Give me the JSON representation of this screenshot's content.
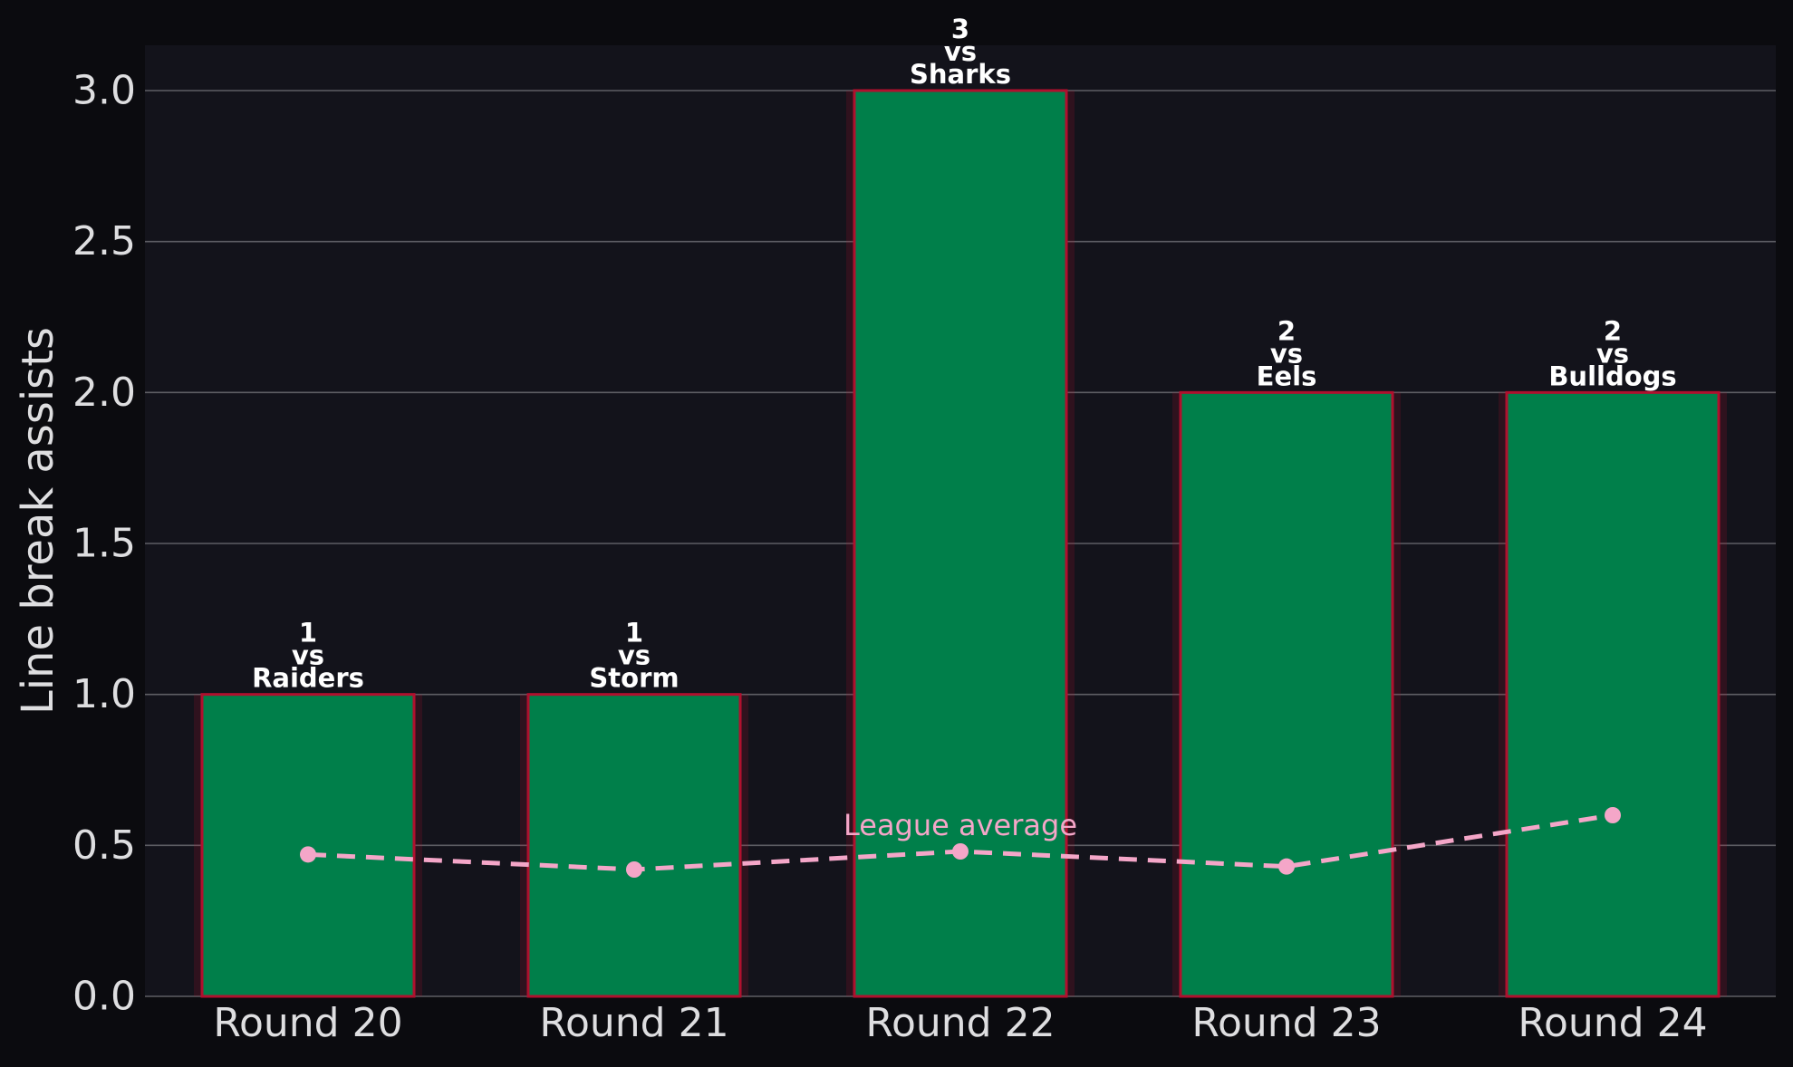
{
  "chart_data": {
    "type": "bar",
    "categories": [
      "Round 20",
      "Round 21",
      "Round 22",
      "Round 23",
      "Round 24"
    ],
    "series": [
      {
        "type": "bar",
        "values": [
          1,
          1,
          3,
          2,
          2
        ]
      },
      {
        "type": "line",
        "name": "League average",
        "values": [
          0.47,
          0.42,
          0.48,
          0.43,
          0.6
        ]
      }
    ],
    "bar_labels": [
      [
        "1",
        "vs",
        "Raiders"
      ],
      [
        "1",
        "vs",
        "Storm"
      ],
      [
        "3",
        "vs",
        "Sharks"
      ],
      [
        "2",
        "vs",
        "Eels"
      ],
      [
        "2",
        "vs",
        "Bulldogs"
      ]
    ],
    "ylabel": "Line break assists",
    "xlabel": "",
    "ylim": [
      0,
      3.15
    ],
    "yticks": [
      "0.0",
      "0.5",
      "1.0",
      "1.5",
      "2.0",
      "2.5",
      "3.0"
    ],
    "grid": true,
    "annotation": "League average",
    "colors": {
      "figure_background": "#0b0b0f",
      "plot_background": "#13131b",
      "bar_fill": "#007f4a",
      "bar_edge": "#b0102e",
      "line": "#f4a6c8",
      "grid": "#5e5e64",
      "text": "#dedee0",
      "bar_label": "#ffffff"
    }
  }
}
